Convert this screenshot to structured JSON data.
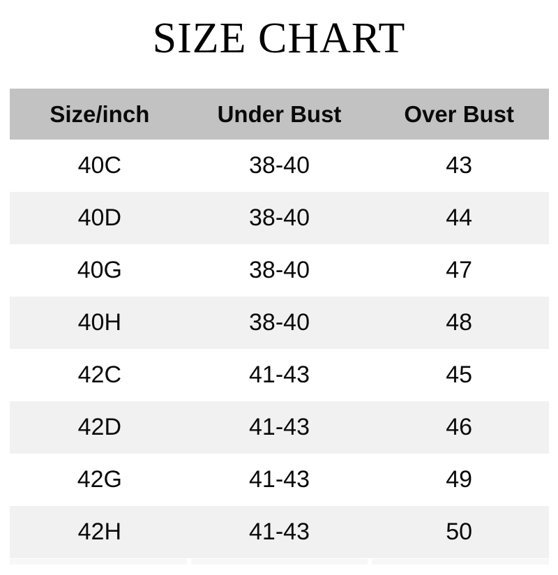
{
  "page": {
    "title": "SIZE CHART",
    "background": "#ffffff"
  },
  "table": {
    "columns": [
      "Size/inch",
      "Under Bust",
      "Over Bust"
    ],
    "rows": [
      [
        "40C",
        "38-40",
        "43"
      ],
      [
        "40D",
        "38-40",
        "44"
      ],
      [
        "40G",
        "38-40",
        "47"
      ],
      [
        "40H",
        "38-40",
        "48"
      ],
      [
        "42C",
        "41-43",
        "45"
      ],
      [
        "42D",
        "41-43",
        "46"
      ],
      [
        "42G",
        "41-43",
        "49"
      ],
      [
        "42H",
        "41-43",
        "50"
      ]
    ],
    "colors": {
      "header_bg": "#c2c2c2",
      "row_bg": "#ffffff",
      "row_alt_bg": "#f1f1f1",
      "partial_row_bg": "#f7f7f7",
      "text": "#0a0a0a",
      "title": "#000000"
    }
  },
  "chart_data": {
    "type": "table",
    "title": "SIZE CHART",
    "columns": [
      "Size/inch",
      "Under Bust",
      "Over Bust"
    ],
    "rows": [
      [
        "40C",
        "38-40",
        "43"
      ],
      [
        "40D",
        "38-40",
        "44"
      ],
      [
        "40G",
        "38-40",
        "47"
      ],
      [
        "40H",
        "38-40",
        "48"
      ],
      [
        "42C",
        "41-43",
        "45"
      ],
      [
        "42D",
        "41-43",
        "46"
      ],
      [
        "42G",
        "41-43",
        "49"
      ],
      [
        "42H",
        "41-43",
        "50"
      ]
    ]
  }
}
